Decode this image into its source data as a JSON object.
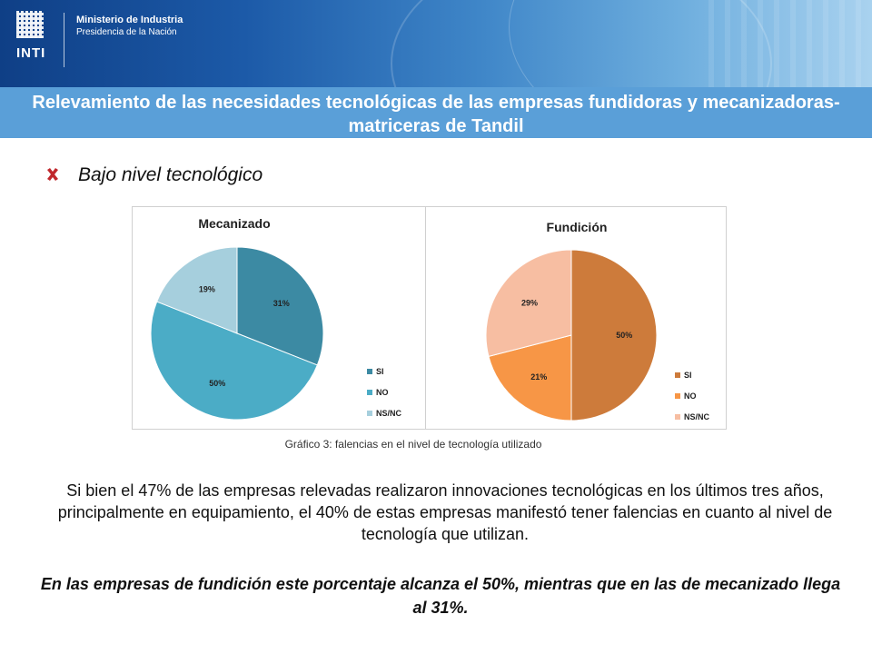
{
  "header": {
    "logo_text": "INTI",
    "ministry": "Ministerio de Industria",
    "presidency": "Presidencia de la Nación",
    "title": "Relevamiento de las necesidades tecnológicas de las empresas fundidoras y mecanizadoras-matriceras de Tandil"
  },
  "bullet": {
    "icon": "red-x-icon",
    "text": "Bajo nivel tecnológico"
  },
  "chart_data": [
    {
      "type": "pie",
      "title": "Mecanizado",
      "categories": [
        "SI",
        "NO",
        "NS/NC"
      ],
      "values": [
        31,
        50,
        19
      ],
      "labels": [
        "31%",
        "50%",
        "19%"
      ],
      "colors": [
        "#3c8aa3",
        "#4bacc6",
        "#a6cfdd"
      ],
      "legend_position": "right"
    },
    {
      "type": "pie",
      "title": "Fundición",
      "categories": [
        "SI",
        "NO",
        "NS/NC"
      ],
      "values": [
        50,
        21,
        29
      ],
      "labels": [
        "50%",
        "21%",
        "29%"
      ],
      "colors": [
        "#cd7b3b",
        "#f79646",
        "#f7bea2"
      ],
      "legend_position": "right"
    }
  ],
  "caption": "Gráfico 3: falencias en el nivel de tecnología utilizado",
  "paragraph1": "Si bien el 47% de las empresas relevadas realizaron innovaciones tecnológicas en los últimos tres años, principalmente en equipamiento, el 40% de estas empresas manifestó tener falencias en cuanto al nivel de tecnología que utilizan.",
  "paragraph2": "En las empresas de fundición este porcentaje alcanza el 50%, mientras que en las de mecanizado llega al 31%.",
  "colors": {
    "banner_dark": "#0f3f86",
    "title_bar": "#5a9fd8",
    "bullet_red": "#c0282d"
  }
}
